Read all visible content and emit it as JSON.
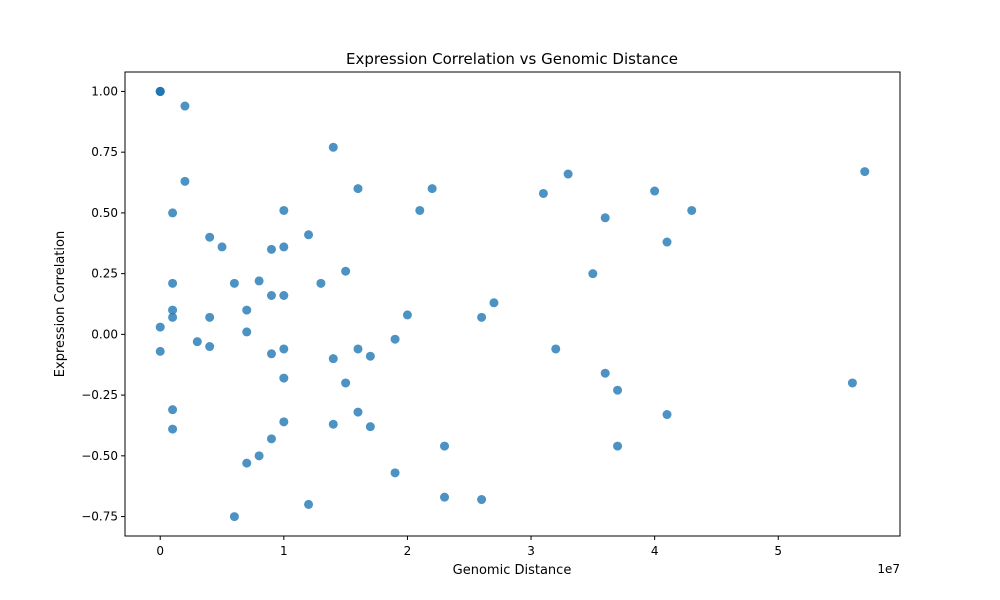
{
  "chart_data": {
    "type": "scatter",
    "title": "Expression Correlation vs Genomic Distance",
    "xlabel": "Genomic Distance",
    "ylabel": "Expression Correlation",
    "x_offset_text": "1e7",
    "xlim": [
      -2850000,
      59850000
    ],
    "ylim": [
      -0.83,
      1.08
    ],
    "xticks": [
      0,
      10000000,
      20000000,
      30000000,
      40000000,
      50000000
    ],
    "xtick_labels": [
      "0",
      "1",
      "2",
      "3",
      "4",
      "5"
    ],
    "yticks": [
      -0.75,
      -0.5,
      -0.25,
      0.0,
      0.25,
      0.5,
      0.75,
      1.0
    ],
    "ytick_labels": [
      "−0.75",
      "−0.50",
      "−0.25",
      "0.00",
      "0.25",
      "0.50",
      "0.75",
      "1.00"
    ],
    "grid": false,
    "marker_color": "#1f77b4",
    "marker_opacity": 0.8,
    "points": [
      {
        "x": 0,
        "y": 1.0
      },
      {
        "x": 0,
        "y": 1.0
      },
      {
        "x": 0,
        "y": 1.0
      },
      {
        "x": 0,
        "y": 1.0
      },
      {
        "x": 0,
        "y": 0.03
      },
      {
        "x": 0,
        "y": -0.07
      },
      {
        "x": 2000000,
        "y": 0.94
      },
      {
        "x": 14000000,
        "y": 0.77
      },
      {
        "x": 2000000,
        "y": 0.63
      },
      {
        "x": 1000000,
        "y": 0.5
      },
      {
        "x": 16000000,
        "y": 0.6
      },
      {
        "x": 22000000,
        "y": 0.6
      },
      {
        "x": 33000000,
        "y": 0.66
      },
      {
        "x": 57000000,
        "y": 0.67
      },
      {
        "x": 31000000,
        "y": 0.58
      },
      {
        "x": 40000000,
        "y": 0.59
      },
      {
        "x": 21000000,
        "y": 0.51
      },
      {
        "x": 10000000,
        "y": 0.51
      },
      {
        "x": 43000000,
        "y": 0.51
      },
      {
        "x": 36000000,
        "y": 0.48
      },
      {
        "x": 12000000,
        "y": 0.41
      },
      {
        "x": 4000000,
        "y": 0.4
      },
      {
        "x": 5000000,
        "y": 0.36
      },
      {
        "x": 9000000,
        "y": 0.35
      },
      {
        "x": 10000000,
        "y": 0.36
      },
      {
        "x": 41000000,
        "y": 0.38
      },
      {
        "x": 15000000,
        "y": 0.26
      },
      {
        "x": 35000000,
        "y": 0.25
      },
      {
        "x": 8000000,
        "y": 0.22
      },
      {
        "x": 1000000,
        "y": 0.21
      },
      {
        "x": 6000000,
        "y": 0.21
      },
      {
        "x": 13000000,
        "y": 0.21
      },
      {
        "x": 9000000,
        "y": 0.16
      },
      {
        "x": 10000000,
        "y": 0.16
      },
      {
        "x": 27000000,
        "y": 0.13
      },
      {
        "x": 1000000,
        "y": 0.1
      },
      {
        "x": 7000000,
        "y": 0.1
      },
      {
        "x": 1000000,
        "y": 0.07
      },
      {
        "x": 4000000,
        "y": 0.07
      },
      {
        "x": 20000000,
        "y": 0.08
      },
      {
        "x": 26000000,
        "y": 0.07
      },
      {
        "x": 7000000,
        "y": 0.01
      },
      {
        "x": 3000000,
        "y": -0.03
      },
      {
        "x": 4000000,
        "y": -0.05
      },
      {
        "x": 19000000,
        "y": -0.02
      },
      {
        "x": 10000000,
        "y": -0.06
      },
      {
        "x": 9000000,
        "y": -0.08
      },
      {
        "x": 16000000,
        "y": -0.06
      },
      {
        "x": 32000000,
        "y": -0.06
      },
      {
        "x": 14000000,
        "y": -0.1
      },
      {
        "x": 17000000,
        "y": -0.09
      },
      {
        "x": 36000000,
        "y": -0.16
      },
      {
        "x": 10000000,
        "y": -0.18
      },
      {
        "x": 15000000,
        "y": -0.2
      },
      {
        "x": 56000000,
        "y": -0.2
      },
      {
        "x": 37000000,
        "y": -0.23
      },
      {
        "x": 1000000,
        "y": -0.31
      },
      {
        "x": 16000000,
        "y": -0.32
      },
      {
        "x": 41000000,
        "y": -0.33
      },
      {
        "x": 10000000,
        "y": -0.36
      },
      {
        "x": 14000000,
        "y": -0.37
      },
      {
        "x": 17000000,
        "y": -0.38
      },
      {
        "x": 1000000,
        "y": -0.39
      },
      {
        "x": 9000000,
        "y": -0.43
      },
      {
        "x": 23000000,
        "y": -0.46
      },
      {
        "x": 37000000,
        "y": -0.46
      },
      {
        "x": 8000000,
        "y": -0.5
      },
      {
        "x": 7000000,
        "y": -0.53
      },
      {
        "x": 19000000,
        "y": -0.57
      },
      {
        "x": 23000000,
        "y": -0.67
      },
      {
        "x": 26000000,
        "y": -0.68
      },
      {
        "x": 12000000,
        "y": -0.7
      },
      {
        "x": 6000000,
        "y": -0.75
      }
    ]
  }
}
